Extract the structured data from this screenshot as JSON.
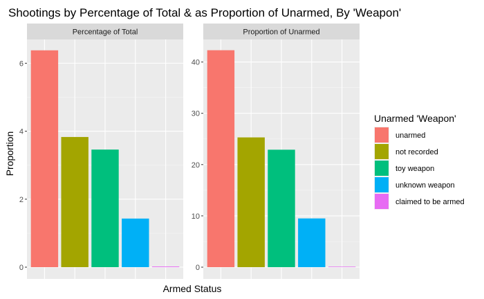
{
  "chart_data": {
    "type": "bar",
    "title": "Shootings by Percentage of Total & as Proportion of Unarmed, By 'Weapon'",
    "xlabel": "Armed Status",
    "ylabel": "Proportion",
    "legend": {
      "title": "Unarmed 'Weapon'",
      "placement": "right",
      "entries": [
        {
          "label": "unarmed",
          "color": "#F8766D"
        },
        {
          "label": "not recorded",
          "color": "#A3A500"
        },
        {
          "label": "toy weapon",
          "color": "#00BF7D"
        },
        {
          "label": "unknown weapon",
          "color": "#00B0F6"
        },
        {
          "label": "claimed to be armed",
          "color": "#E76BF3"
        }
      ]
    },
    "panels": [
      {
        "strip": "Percentage of Total",
        "categories": [
          "unarmed",
          "not recorded",
          "toy weapon",
          "unknown weapon",
          "claimed to be armed"
        ],
        "values": [
          6.38,
          3.83,
          3.46,
          1.43,
          0.02
        ],
        "ylim": [
          0,
          6.7
        ],
        "yticks": [
          0,
          2,
          4,
          6
        ]
      },
      {
        "strip": "Proportion of Unarmed",
        "categories": [
          "unarmed",
          "not recorded",
          "toy weapon",
          "unknown weapon",
          "claimed to be armed"
        ],
        "values": [
          42.3,
          25.3,
          22.9,
          9.5,
          0.1
        ],
        "ylim": [
          0,
          44.4
        ],
        "yticks": [
          0,
          10,
          20,
          30,
          40
        ]
      }
    ],
    "grid": true
  }
}
